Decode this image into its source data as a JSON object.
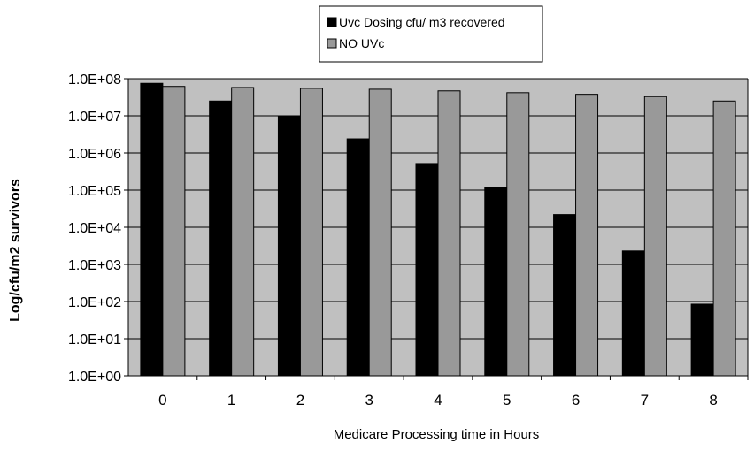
{
  "chart_data": {
    "type": "bar",
    "title": "",
    "xlabel": "Medicare Processing time in Hours",
    "ylabel": "Log/cfu/m2 survivors",
    "y_scale": "log",
    "ylim": [
      1,
      100000000
    ],
    "y_ticks": [
      "1.0E+00",
      "1.0E+01",
      "1.0E+02",
      "1.0E+03",
      "1.0E+04",
      "1.0E+05",
      "1.0E+06",
      "1.0E+07",
      "1.0E+08"
    ],
    "categories": [
      "0",
      "1",
      "2",
      "3",
      "4",
      "5",
      "6",
      "7",
      "8"
    ],
    "series": [
      {
        "name": "Uvc Dosing cfu/ m3 recovered",
        "color": "#000000",
        "values": [
          75000000,
          25000000,
          10000000,
          2400000,
          520000,
          120000,
          22000,
          2300,
          85
        ]
      },
      {
        "name": "NO UVc",
        "color": "#999999",
        "values": [
          62000000,
          58000000,
          55000000,
          52000000,
          47000000,
          42000000,
          38000000,
          33000000,
          25000000
        ]
      }
    ],
    "grid": true,
    "plot_background": "#c0c0c0",
    "legend_position": "top-center"
  }
}
